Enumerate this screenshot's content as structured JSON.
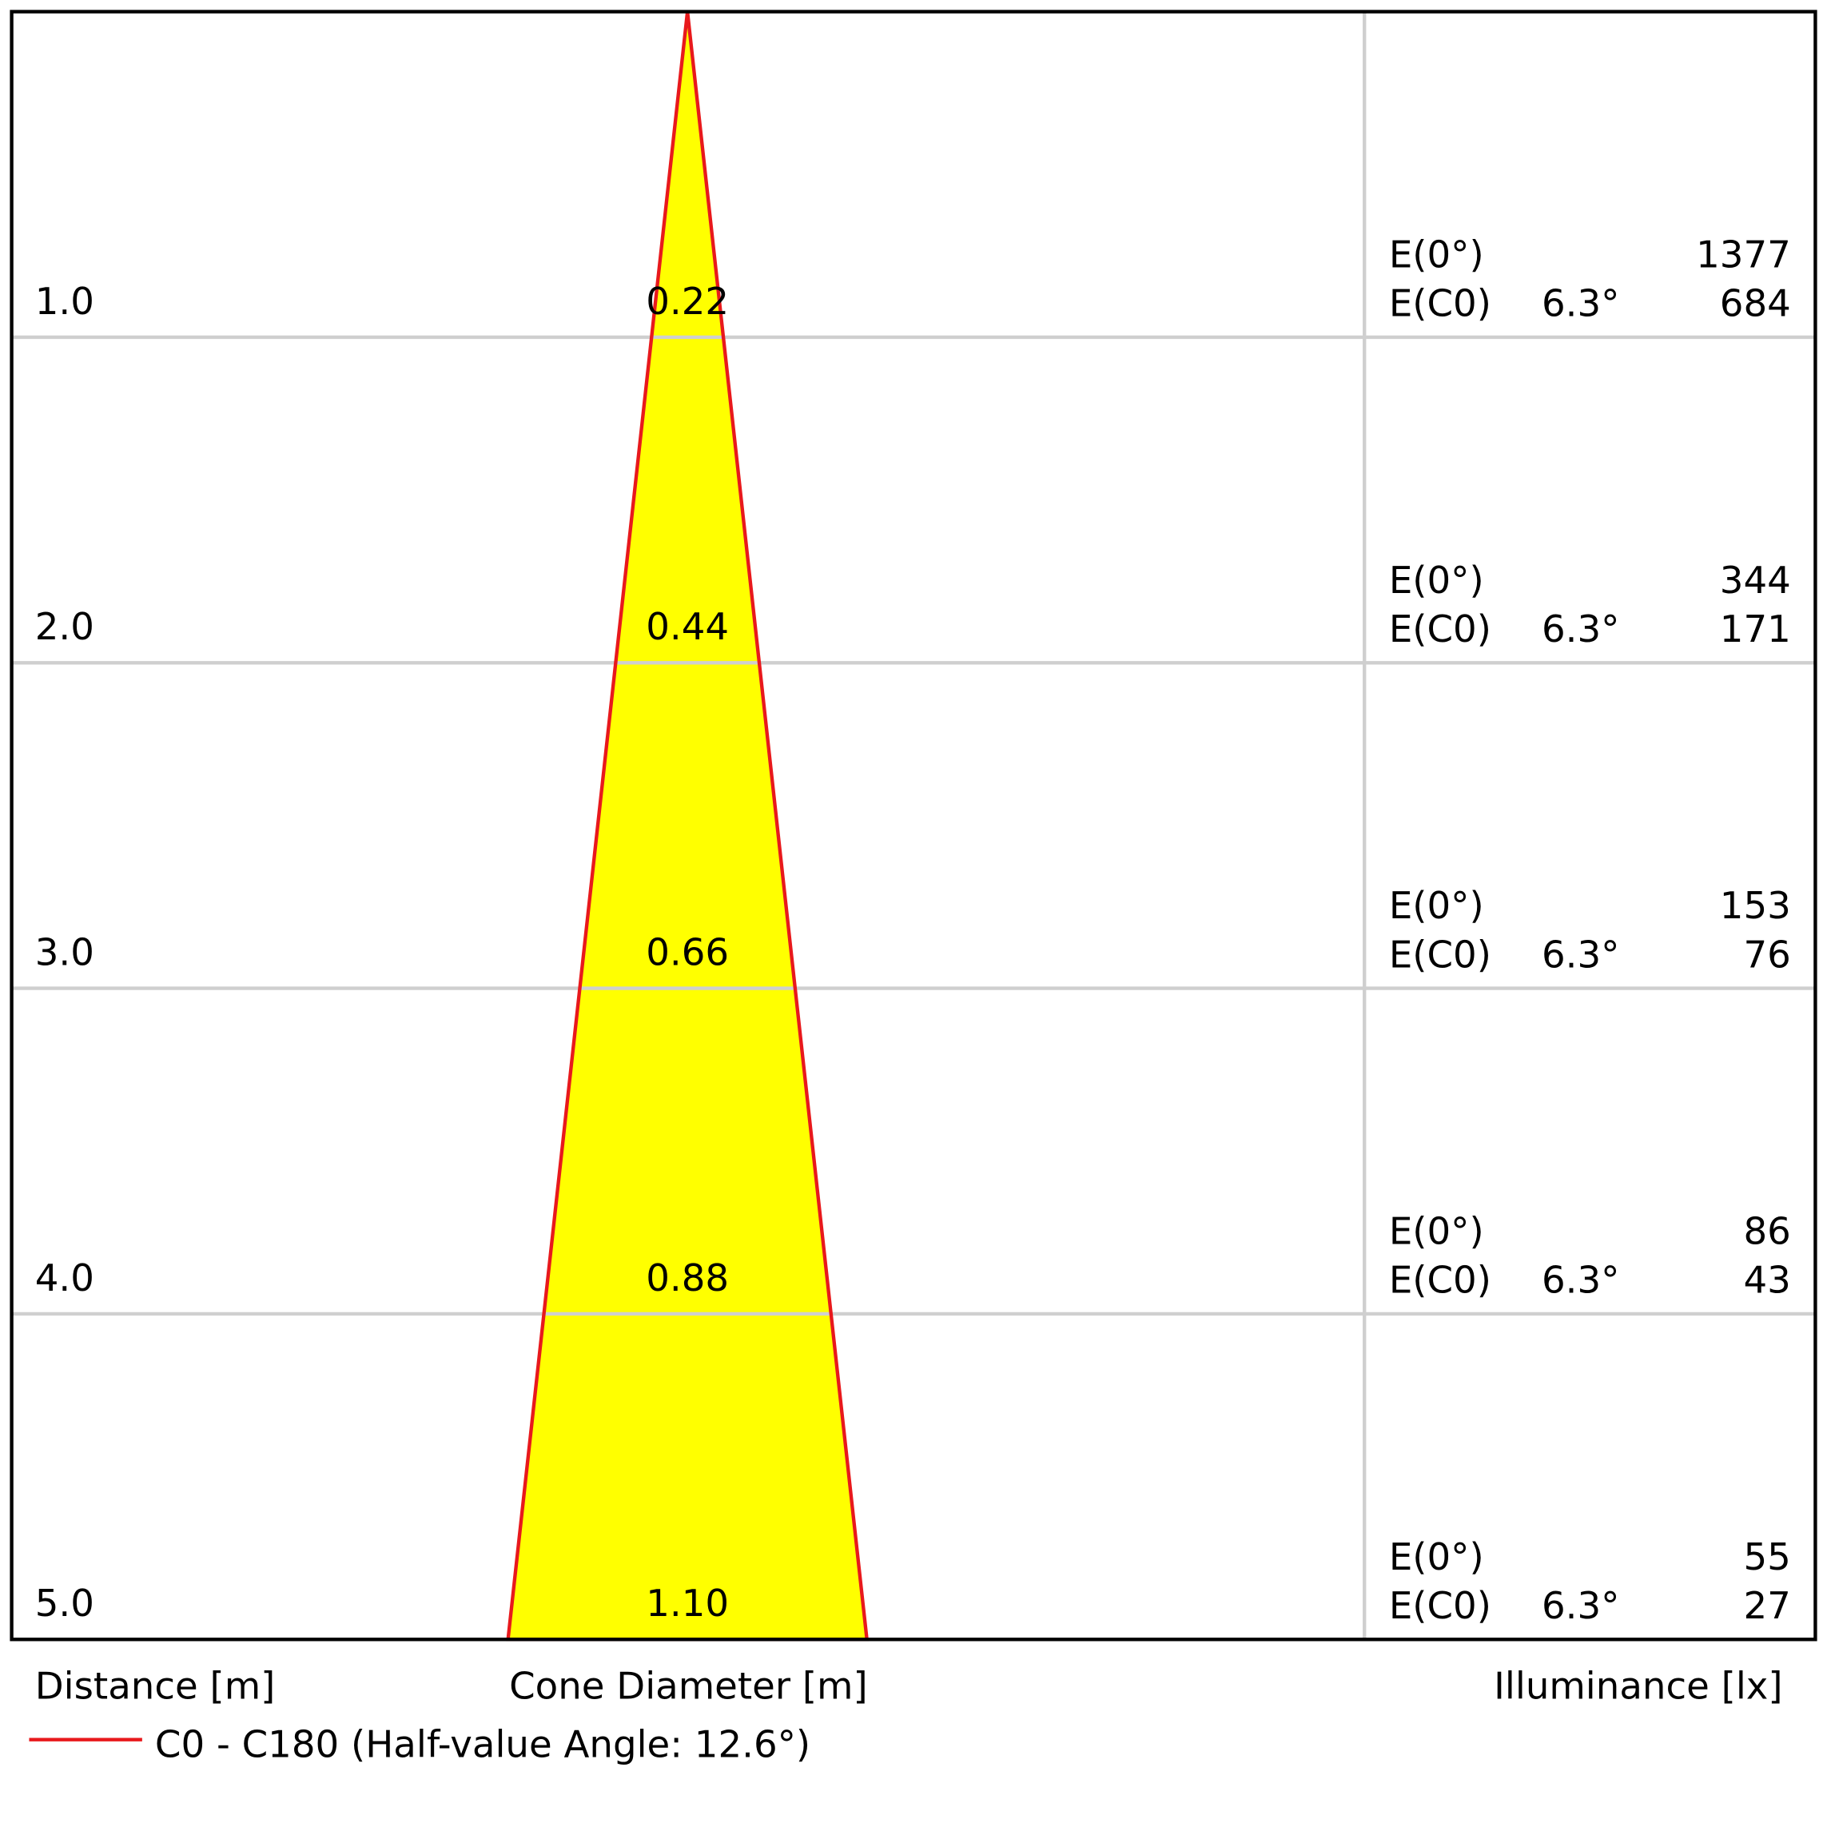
{
  "chart_data": {
    "type": "cone",
    "distance_label": "Distance [m]",
    "diameter_label": "Cone Diameter [m]",
    "illuminance_label": "Illuminance [lx]",
    "legend": {
      "name": "C0 - C180 (Half-value Angle: 12.6°)",
      "color": "#e8191c"
    },
    "fill": "#ffff00",
    "distances": [
      {
        "value": 1,
        "label": "1.0"
      },
      {
        "value": 2,
        "label": "2.0"
      },
      {
        "value": 3,
        "label": "3.0"
      },
      {
        "value": 4,
        "label": "4.0"
      },
      {
        "value": 5,
        "label": "5.0"
      }
    ],
    "diameters": [
      0.22,
      0.44,
      0.66,
      0.88,
      {
        "value": 1.1,
        "label": "1.10"
      }
    ],
    "e0_label": "E(0°)",
    "ec0_label": "E(C0)",
    "e0": [
      1377,
      344,
      153,
      86,
      55
    ],
    "ec0": [
      684,
      171,
      76,
      43,
      27
    ],
    "angles": [
      6.3,
      6.3,
      6.3,
      6.3,
      6.3
    ],
    "angle_labels": [
      "6.3°",
      "6.3°",
      "6.3°",
      "6.3°",
      "6.3°"
    ]
  }
}
